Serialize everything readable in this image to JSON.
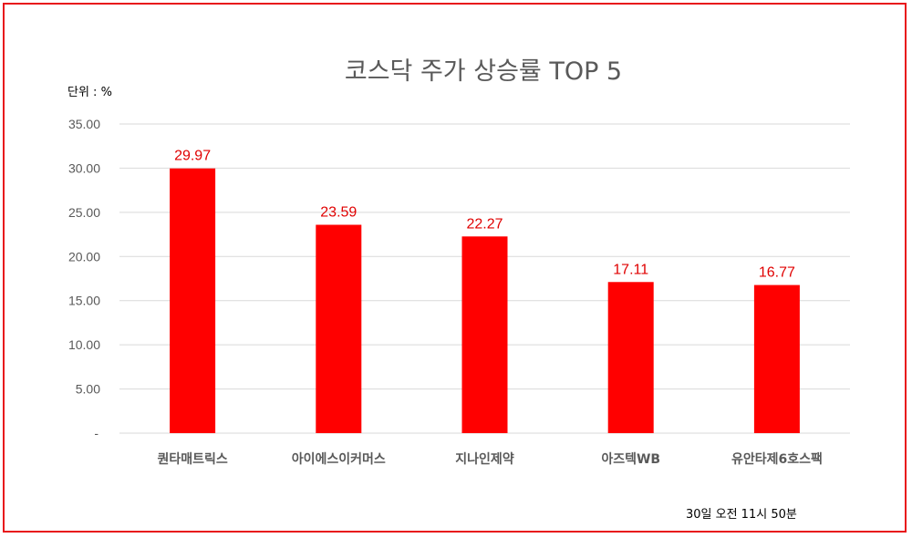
{
  "chart_data": {
    "type": "bar",
    "title": "코스닥 주가 상승률 TOP 5",
    "unit_label": "단위 : %",
    "timestamp": "30일  오전 11시 50분",
    "categories": [
      "퀀타매트릭스",
      "아이에스이커머스",
      "지나인제약",
      "아즈텍WB",
      "유안타제6호스팩"
    ],
    "values": [
      29.97,
      23.59,
      22.27,
      17.11,
      16.77
    ],
    "data_labels": [
      "29.97",
      "23.59",
      "22.27",
      "17.11",
      "16.77"
    ],
    "ylim": [
      0,
      35
    ],
    "y_ticks": [
      "-",
      "5.00",
      "10.00",
      "15.00",
      "20.00",
      "25.00",
      "30.00",
      "35.00"
    ],
    "grid": true,
    "legend": "none",
    "colors": {
      "bar": "#ff0000",
      "data_label": "#e00000",
      "frame": "#e8161b",
      "grid": "#d9d9d9"
    }
  }
}
